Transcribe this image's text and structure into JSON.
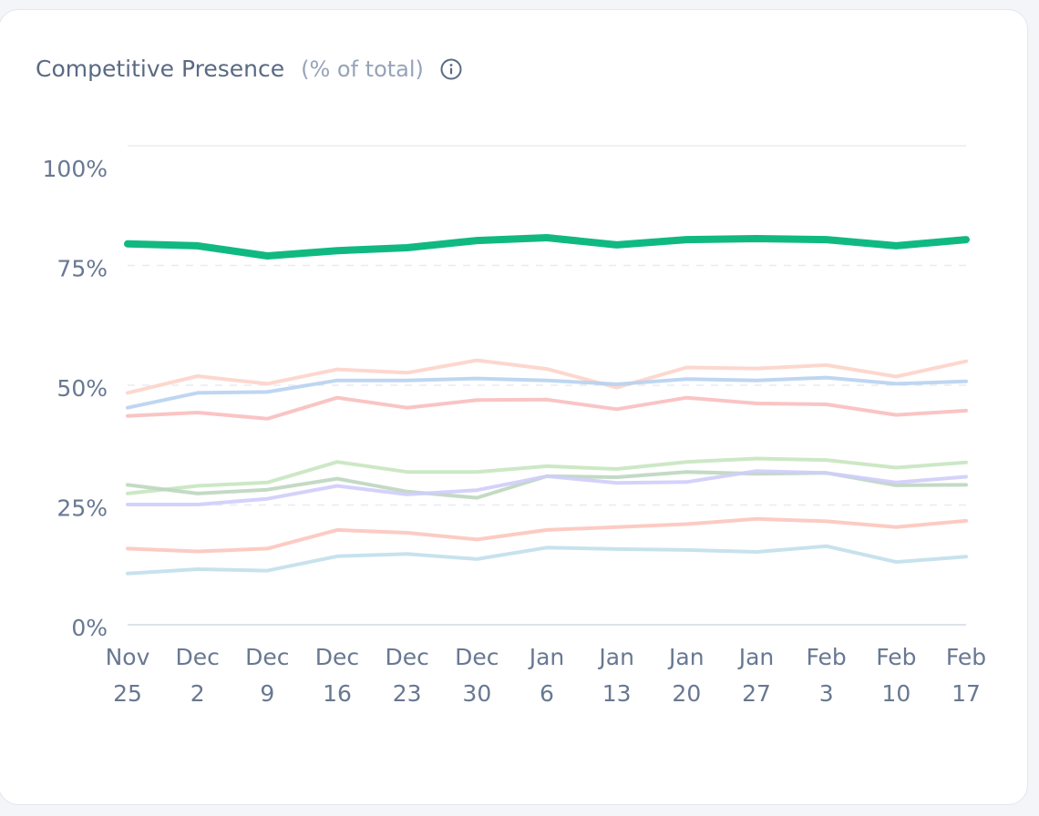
{
  "header": {
    "title": "Competitive Presence",
    "subtitle": "(% of total)",
    "info_icon": "info-circle-icon"
  },
  "chart_data": {
    "type": "line",
    "title": "Competitive Presence",
    "subtitle": "(% of total)",
    "xlabel": "",
    "ylabel": "",
    "ylim": [
      0,
      100
    ],
    "y_ticks": [
      0,
      25,
      50,
      75,
      100
    ],
    "y_tick_labels": [
      "0%",
      "25%",
      "50%",
      "75%",
      "100%"
    ],
    "grid": "horizontal dashed",
    "legend": "none",
    "categories": [
      [
        "Nov",
        "25"
      ],
      [
        "Dec",
        "2"
      ],
      [
        "Dec",
        "9"
      ],
      [
        "Dec",
        "16"
      ],
      [
        "Dec",
        "23"
      ],
      [
        "Dec",
        "30"
      ],
      [
        "Jan",
        "6"
      ],
      [
        "Jan",
        "13"
      ],
      [
        "Jan",
        "20"
      ],
      [
        "Jan",
        "27"
      ],
      [
        "Feb",
        "3"
      ],
      [
        "Feb",
        "10"
      ],
      [
        "Feb",
        "17"
      ]
    ],
    "series": [
      {
        "color": "#fdd3c9",
        "width": 4,
        "values": [
          48.4,
          51.9,
          50.3,
          53.3,
          52.6,
          55.2,
          53.4,
          49.5,
          53.7,
          53.5,
          54.2,
          51.8,
          55.0
        ]
      },
      {
        "color": "#b7d2f0",
        "width": 4,
        "values": [
          45.3,
          48.4,
          48.6,
          51.0,
          51.0,
          51.4,
          51.0,
          50.2,
          51.3,
          51.0,
          51.6,
          50.3,
          50.8
        ]
      },
      {
        "color": "#f9bebe",
        "width": 4,
        "values": [
          43.6,
          44.3,
          43.0,
          47.4,
          45.3,
          46.9,
          47.0,
          45.0,
          47.4,
          46.2,
          46.0,
          43.8,
          44.7
        ]
      },
      {
        "color": "#c6e5bf",
        "width": 4,
        "values": [
          27.4,
          29.0,
          29.7,
          34.0,
          31.9,
          31.9,
          33.1,
          32.5,
          34.0,
          34.7,
          34.4,
          32.8,
          33.9
        ]
      },
      {
        "color": "#bcd6be",
        "width": 4,
        "values": [
          29.2,
          27.4,
          28.2,
          30.5,
          27.8,
          26.5,
          31.0,
          30.8,
          31.9,
          31.5,
          31.7,
          29.1,
          29.2
        ]
      },
      {
        "color": "#cfcdfb",
        "width": 4,
        "values": [
          25.1,
          25.1,
          26.3,
          29.0,
          27.2,
          28.1,
          31.0,
          29.6,
          29.8,
          32.1,
          31.7,
          29.7,
          30.9
        ]
      },
      {
        "color": "#fcc5bc",
        "width": 4,
        "values": [
          15.9,
          15.3,
          15.9,
          19.8,
          19.2,
          17.8,
          19.8,
          20.4,
          21.0,
          22.1,
          21.6,
          20.4,
          21.7
        ]
      },
      {
        "color": "#c1dfeb",
        "width": 4,
        "values": [
          10.7,
          11.6,
          11.3,
          14.3,
          14.8,
          13.7,
          16.1,
          15.8,
          15.6,
          15.2,
          16.4,
          13.1,
          14.2
        ]
      },
      {
        "color": "#10b981",
        "width": 8,
        "values": [
          79.5,
          79.1,
          77.0,
          78.1,
          78.7,
          80.2,
          80.8,
          79.3,
          80.4,
          80.6,
          80.4,
          79.1,
          80.4
        ]
      }
    ]
  }
}
